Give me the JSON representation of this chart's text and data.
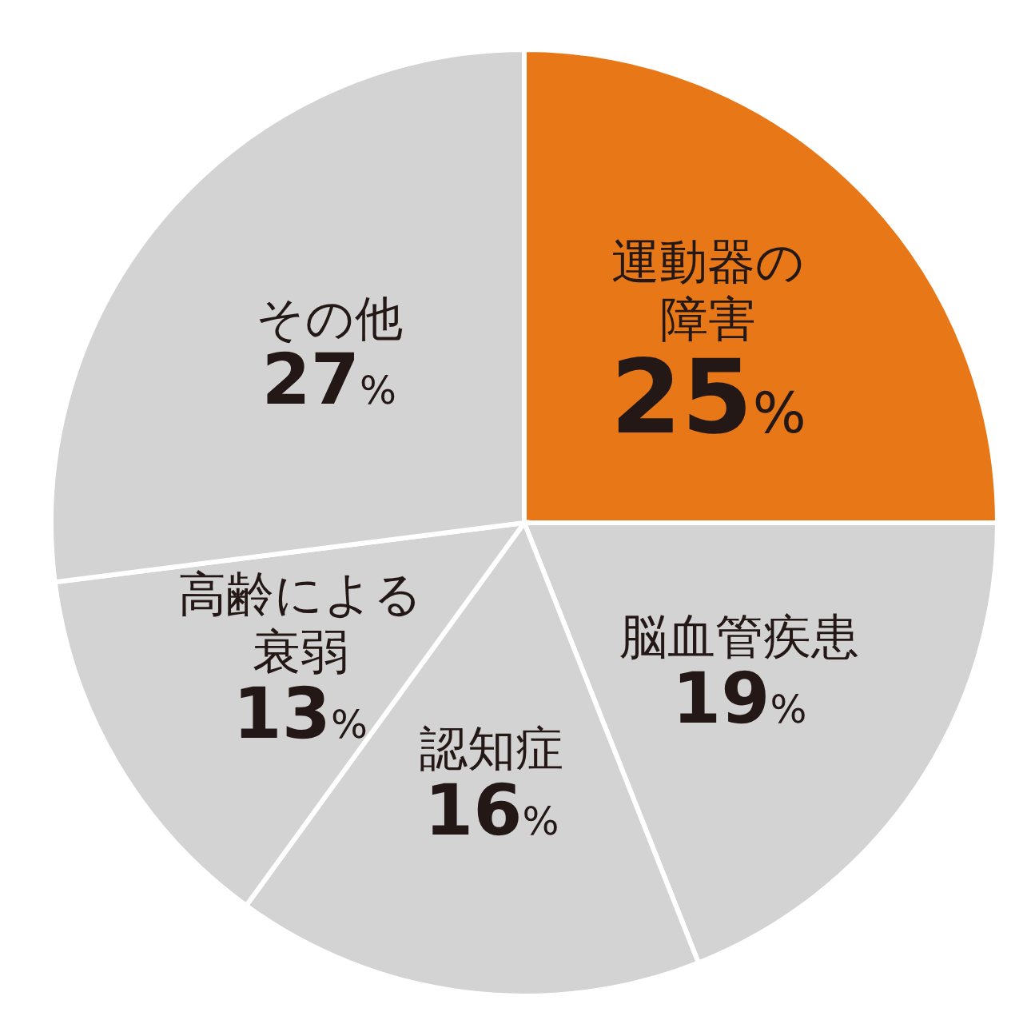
{
  "chart_data": {
    "type": "pie",
    "categories": [
      "運動器の障害",
      "脳血管疾患",
      "認知症",
      "高齢による衰弱",
      "その他"
    ],
    "values": [
      25,
      19,
      16,
      13,
      27
    ],
    "colors": [
      "#e87817",
      "#d3d3d3",
      "#d3d3d3",
      "#d3d3d3",
      "#d3d3d3"
    ],
    "value_labels": [
      "25%",
      "19%",
      "16%",
      "13%",
      "27%"
    ],
    "legend": false
  }
}
